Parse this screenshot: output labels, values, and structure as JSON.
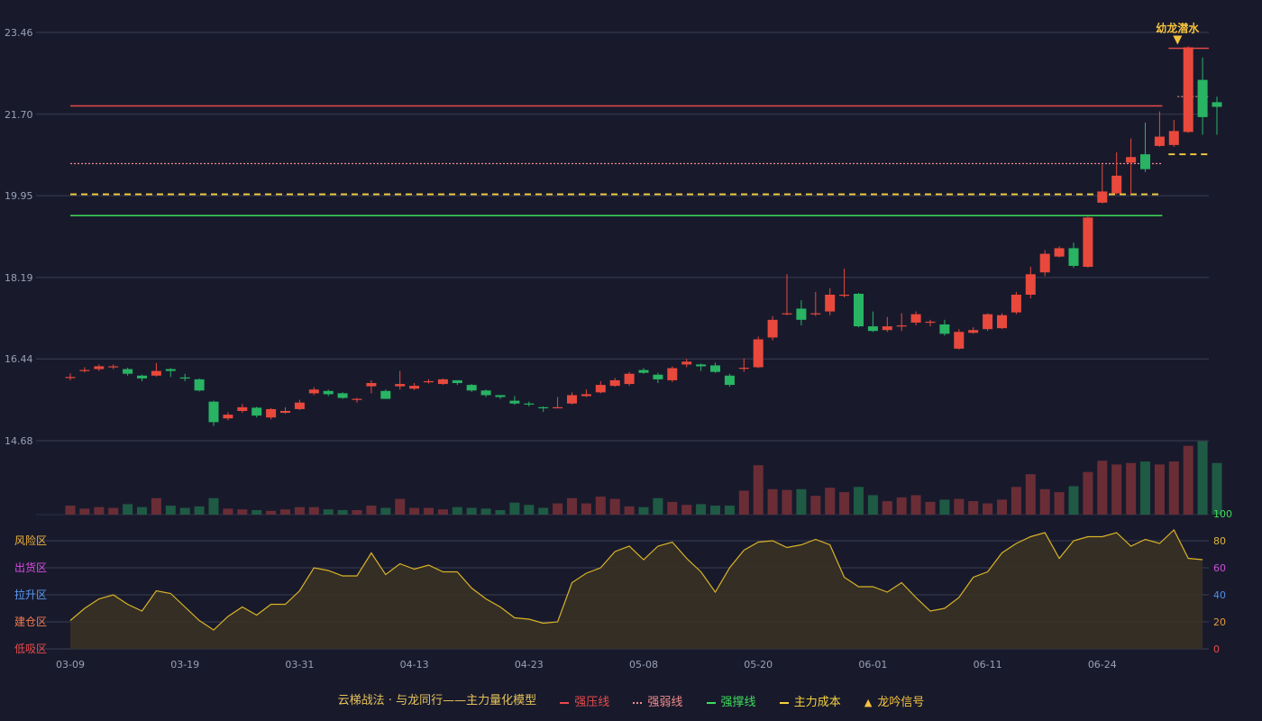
{
  "chart_data": {
    "type": "candlestick",
    "price_axis": {
      "ticks": [
        "23.46",
        "21.70",
        "19.95",
        "18.19",
        "16.44",
        "14.68"
      ],
      "min": 14.68,
      "max": 23.46
    },
    "x_ticks": [
      {
        "label": "03-09",
        "index": 0
      },
      {
        "label": "03-19",
        "index": 8
      },
      {
        "label": "03-31",
        "index": 16
      },
      {
        "label": "04-13",
        "index": 24
      },
      {
        "label": "04-23",
        "index": 32
      },
      {
        "label": "05-08",
        "index": 40
      },
      {
        "label": "05-20",
        "index": 48
      },
      {
        "label": "06-01",
        "index": 56
      },
      {
        "label": "06-11",
        "index": 64
      },
      {
        "label": "06-24",
        "index": 72
      }
    ],
    "candles": [
      [
        16.05,
        16.05,
        16.13,
        15.98,
        0.12
      ],
      [
        16.2,
        16.2,
        16.26,
        16.15,
        0.08
      ],
      [
        16.22,
        16.28,
        16.32,
        16.18,
        0.1
      ],
      [
        16.26,
        16.28,
        16.32,
        16.22,
        0.09
      ],
      [
        16.22,
        16.12,
        16.25,
        16.08,
        0.14
      ],
      [
        16.08,
        16.02,
        16.1,
        15.96,
        0.1
      ],
      [
        16.08,
        16.18,
        16.35,
        16.06,
        0.22
      ],
      [
        16.22,
        16.18,
        16.24,
        16.05,
        0.12
      ],
      [
        16.04,
        16.02,
        16.12,
        15.96,
        0.09
      ],
      [
        16.0,
        15.76,
        16.02,
        15.74,
        0.11
      ],
      [
        15.52,
        15.08,
        15.54,
        15.0,
        0.22
      ],
      [
        15.16,
        15.24,
        15.29,
        15.12,
        0.08
      ],
      [
        15.32,
        15.4,
        15.47,
        15.28,
        0.07
      ],
      [
        15.39,
        15.22,
        15.41,
        15.18,
        0.06
      ],
      [
        15.18,
        15.36,
        15.38,
        15.14,
        0.05
      ],
      [
        15.28,
        15.32,
        15.4,
        15.26,
        0.07
      ],
      [
        15.36,
        15.5,
        15.56,
        15.34,
        0.1
      ],
      [
        15.7,
        15.78,
        15.83,
        15.66,
        0.1
      ],
      [
        15.75,
        15.68,
        15.78,
        15.64,
        0.07
      ],
      [
        15.7,
        15.6,
        15.72,
        15.58,
        0.06
      ],
      [
        15.56,
        15.58,
        15.6,
        15.5,
        0.06
      ],
      [
        15.85,
        15.92,
        15.98,
        15.7,
        0.12
      ],
      [
        15.75,
        15.58,
        15.78,
        15.58,
        0.09
      ],
      [
        15.85,
        15.9,
        16.18,
        15.78,
        0.21
      ],
      [
        15.8,
        15.86,
        15.92,
        15.77,
        0.09
      ],
      [
        15.95,
        15.96,
        16.0,
        15.91,
        0.09
      ],
      [
        15.9,
        16.0,
        16.02,
        15.88,
        0.07
      ],
      [
        15.98,
        15.92,
        15.98,
        15.88,
        0.1
      ],
      [
        15.88,
        15.76,
        15.9,
        15.73,
        0.09
      ],
      [
        15.76,
        15.66,
        15.78,
        15.62,
        0.08
      ],
      [
        15.66,
        15.62,
        15.66,
        15.58,
        0.06
      ],
      [
        15.54,
        15.48,
        15.64,
        15.45,
        0.16
      ],
      [
        15.48,
        15.46,
        15.52,
        15.42,
        0.13
      ],
      [
        15.4,
        15.38,
        15.42,
        15.3,
        0.09
      ],
      [
        15.4,
        15.4,
        15.62,
        15.38,
        0.15
      ],
      [
        15.48,
        15.66,
        15.72,
        15.46,
        0.22
      ],
      [
        15.64,
        15.68,
        15.78,
        15.62,
        0.15
      ],
      [
        15.72,
        15.88,
        15.96,
        15.7,
        0.24
      ],
      [
        15.86,
        15.98,
        16.03,
        15.84,
        0.21
      ],
      [
        15.9,
        16.12,
        16.16,
        15.86,
        0.11
      ],
      [
        16.2,
        16.14,
        16.24,
        16.12,
        0.1
      ],
      [
        16.1,
        16.0,
        16.14,
        15.92,
        0.22
      ],
      [
        15.98,
        16.24,
        16.28,
        15.94,
        0.17
      ],
      [
        16.32,
        16.38,
        16.44,
        16.26,
        0.13
      ],
      [
        16.32,
        16.28,
        16.34,
        16.18,
        0.14
      ],
      [
        16.3,
        16.16,
        16.36,
        16.14,
        0.12
      ],
      [
        16.08,
        15.88,
        16.12,
        15.84,
        0.12
      ],
      [
        16.25,
        16.25,
        16.45,
        16.16,
        0.32
      ],
      [
        16.26,
        16.86,
        16.92,
        16.24,
        0.66
      ],
      [
        16.9,
        17.28,
        17.36,
        16.84,
        0.34
      ],
      [
        17.42,
        17.42,
        18.26,
        17.38,
        0.33
      ],
      [
        17.52,
        17.28,
        17.7,
        17.16,
        0.34
      ],
      [
        17.42,
        17.42,
        17.88,
        17.36,
        0.25
      ],
      [
        17.46,
        17.82,
        17.96,
        17.38,
        0.36
      ],
      [
        17.82,
        17.82,
        18.38,
        17.76,
        0.3
      ],
      [
        17.84,
        17.14,
        17.86,
        17.12,
        0.37
      ],
      [
        17.14,
        17.04,
        17.46,
        17.02,
        0.26
      ],
      [
        17.06,
        17.14,
        17.34,
        17.02,
        0.18
      ],
      [
        17.16,
        17.16,
        17.42,
        17.04,
        0.23
      ],
      [
        17.22,
        17.4,
        17.46,
        17.16,
        0.26
      ],
      [
        17.24,
        17.24,
        17.28,
        17.14,
        0.17
      ],
      [
        17.18,
        16.98,
        17.28,
        16.94,
        0.2
      ],
      [
        16.66,
        17.02,
        17.08,
        16.64,
        0.21
      ],
      [
        17.0,
        17.06,
        17.12,
        16.98,
        0.18
      ],
      [
        17.08,
        17.4,
        17.42,
        17.04,
        0.15
      ],
      [
        17.1,
        17.38,
        17.42,
        17.08,
        0.2
      ],
      [
        17.44,
        17.82,
        17.88,
        17.4,
        0.37
      ],
      [
        17.82,
        18.26,
        18.42,
        17.74,
        0.54
      ],
      [
        18.3,
        18.7,
        18.78,
        18.22,
        0.34
      ],
      [
        18.64,
        18.82,
        18.86,
        18.62,
        0.3
      ],
      [
        18.82,
        18.44,
        18.94,
        18.4,
        0.38
      ],
      [
        18.42,
        19.48,
        19.5,
        18.4,
        0.57
      ],
      [
        19.8,
        20.04,
        20.62,
        19.78,
        0.72
      ],
      [
        20.0,
        20.38,
        20.88,
        19.98,
        0.67
      ],
      [
        20.66,
        20.78,
        21.18,
        19.98,
        0.69
      ],
      [
        20.84,
        20.52,
        21.52,
        20.46,
        0.71
      ],
      [
        21.02,
        21.22,
        21.76,
        21.0,
        0.67
      ],
      [
        21.04,
        21.34,
        21.58,
        21.0,
        0.71
      ],
      [
        21.32,
        23.14,
        23.16,
        21.3,
        0.92
      ],
      [
        22.44,
        21.64,
        22.92,
        21.26,
        0.98
      ],
      [
        21.96,
        21.86,
        22.08,
        21.26,
        0.69
      ]
    ],
    "score": [
      21,
      30,
      37,
      40,
      33,
      28,
      43,
      41,
      31,
      21,
      14,
      24,
      31,
      25,
      33,
      33,
      43,
      60,
      58,
      54,
      54,
      71,
      55,
      63,
      59,
      62,
      57,
      57,
      45,
      37,
      31,
      23,
      22,
      19,
      20,
      49,
      56,
      60,
      72,
      76,
      66,
      76,
      79,
      67,
      57,
      42,
      60,
      73,
      79,
      80,
      75,
      77,
      81,
      77,
      53,
      46,
      46,
      42,
      49,
      38,
      28,
      30,
      38,
      53,
      57,
      71,
      78,
      83,
      86,
      67,
      80,
      83,
      83,
      86,
      76,
      81,
      78,
      88,
      67,
      66
    ],
    "score_axis": {
      "ticks": [
        "100",
        "80",
        "60",
        "40",
        "20",
        "0"
      ],
      "tick_colors": [
        "#3fdc5a",
        "#e0b53a",
        "#c94fd8",
        "#4e8fe8",
        "#e89a38",
        "#e84a4a"
      ]
    },
    "zone_labels": [
      {
        "text": "风险区",
        "color": "#f0b43c"
      },
      {
        "text": "出货区",
        "color": "#d94ae0"
      },
      {
        "text": "拉升区",
        "color": "#5a9bf5"
      },
      {
        "text": "建仓区",
        "color": "#f07a4a"
      },
      {
        "text": "低吸区",
        "color": "#e84a4a"
      }
    ],
    "levels": {
      "pressure": 21.88,
      "weak": 20.64,
      "cost": 19.98,
      "support": 19.52,
      "recent_pressure": 23.12,
      "recent_weak": 22.08,
      "recent_cost": 20.84
    },
    "signal": {
      "label": "龙吟信号",
      "index": 77,
      "text": "幼龙潜水"
    },
    "legend": {
      "title": "云梯战法 · 与龙同行——主力量化模型",
      "items": [
        {
          "name": "强压线",
          "color": "#e84a4a",
          "style": "solid"
        },
        {
          "name": "强弱线",
          "color": "#f08a8a",
          "style": "dotted"
        },
        {
          "name": "强撑线",
          "color": "#3fdc5a",
          "style": "solid"
        },
        {
          "name": "主力成本",
          "color": "#f5d03c",
          "style": "dashed"
        }
      ]
    },
    "colors": {
      "up": "#e8493c",
      "down": "#28b463",
      "bg": "#181a2c",
      "grid": "#3a3d52",
      "signal": "#f5c23c"
    }
  }
}
